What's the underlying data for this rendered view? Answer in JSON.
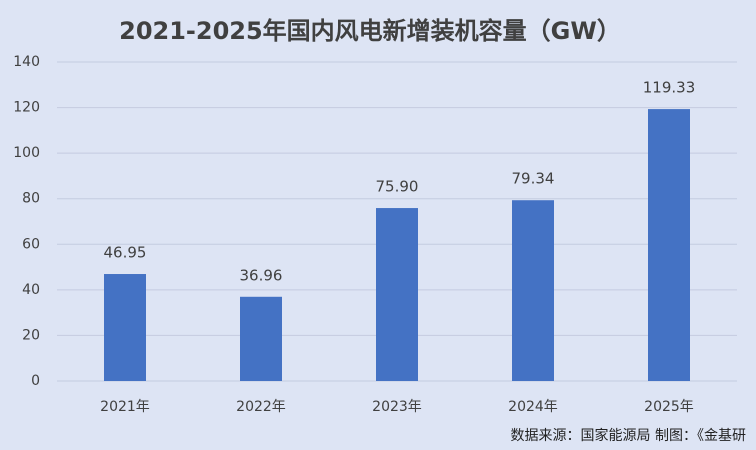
{
  "chart_data": {
    "type": "bar",
    "title": "2021-2025年国内风电新增装机容量（GW）",
    "categories": [
      "2021年",
      "2022年",
      "2023年",
      "2024年",
      "2025年"
    ],
    "values": [
      46.95,
      36.96,
      75.9,
      79.34,
      119.33
    ],
    "value_labels": [
      "46.95",
      "36.96",
      "75.90",
      "79.34",
      "119.33"
    ],
    "color": "#4472c4",
    "ylim": [
      0,
      140
    ],
    "yticks": [
      0,
      20,
      40,
      60,
      80,
      100,
      120,
      140
    ],
    "grid": true,
    "source": "数据来源：国家能源局   制图：《金基研"
  }
}
